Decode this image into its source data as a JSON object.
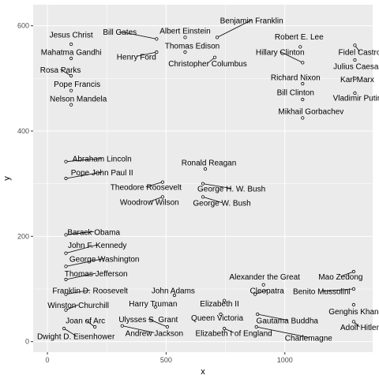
{
  "chart_data": {
    "type": "scatter",
    "xlabel": "x",
    "ylabel": "y",
    "xlim": [
      -60,
      1370
    ],
    "ylim": [
      -20,
      640
    ],
    "x_ticks": [
      0,
      500,
      1000
    ],
    "y_ticks": [
      0,
      200,
      400,
      600
    ],
    "grid": true,
    "colors": {
      "panel": "#ebebeb",
      "grid_major": "#ffffff",
      "point_fill": "#ffffff",
      "point_stroke": "#000000",
      "segment": "#000000",
      "text": "#000000"
    },
    "points": [
      {
        "label": "Benjamin Franklin",
        "x": 715,
        "y": 578,
        "lx": 860,
        "ly": 605
      },
      {
        "label": "Bill Gates",
        "x": 460,
        "y": 575,
        "lx": 305,
        "ly": 583
      },
      {
        "label": "Albert Einstein",
        "x": 580,
        "y": 578,
        "lx": 580,
        "ly": 585
      },
      {
        "label": "Jesus Christ",
        "x": 100,
        "y": 565,
        "lx": 100,
        "ly": 578
      },
      {
        "label": "Robert E. Lee",
        "x": 1065,
        "y": 560,
        "lx": 1060,
        "ly": 574
      },
      {
        "label": "Fidel Castro",
        "x": 1295,
        "y": 563,
        "lx": 1315,
        "ly": 545
      },
      {
        "label": "Thomas Edison",
        "x": 580,
        "y": 550,
        "lx": 610,
        "ly": 557
      },
      {
        "label": "Mahatma Gandhi",
        "x": 100,
        "y": 538,
        "lx": 100,
        "ly": 545
      },
      {
        "label": "Henry Ford",
        "x": 460,
        "y": 550,
        "lx": 375,
        "ly": 536
      },
      {
        "label": "Hillary Clinton",
        "x": 1075,
        "y": 530,
        "lx": 980,
        "ly": 545
      },
      {
        "label": "Julius Caesar",
        "x": 1295,
        "y": 535,
        "lx": 1305,
        "ly": 518
      },
      {
        "label": "Christopher Columbus",
        "x": 705,
        "y": 540,
        "lx": 675,
        "ly": 523
      },
      {
        "label": "Rosa Parks",
        "x": 100,
        "y": 505,
        "lx": 55,
        "ly": 511
      },
      {
        "label": "Pope Francis",
        "x": 100,
        "y": 477,
        "lx": 125,
        "ly": 484
      },
      {
        "label": "Richard Nixon",
        "x": 1075,
        "y": 490,
        "lx": 1045,
        "ly": 497
      },
      {
        "label": "Karl Marx",
        "x": 1295,
        "y": 500,
        "lx": 1305,
        "ly": 493
      },
      {
        "label": "Bill Clinton",
        "x": 1075,
        "y": 460,
        "lx": 1045,
        "ly": 468
      },
      {
        "label": "Vladimir Putin",
        "x": 1295,
        "y": 472,
        "lx": 1305,
        "ly": 458
      },
      {
        "label": "Nelson Mandela",
        "x": 100,
        "y": 450,
        "lx": 130,
        "ly": 456
      },
      {
        "label": "Mikhail Gorbachev",
        "x": 1075,
        "y": 425,
        "lx": 1110,
        "ly": 432
      },
      {
        "label": "Abraham Lincoln",
        "x": 78,
        "y": 342,
        "lx": 230,
        "ly": 342
      },
      {
        "label": "Ronald Reagan",
        "x": 665,
        "y": 328,
        "lx": 680,
        "ly": 335
      },
      {
        "label": "Pope John Paul II",
        "x": 78,
        "y": 310,
        "lx": 230,
        "ly": 316
      },
      {
        "label": "Theodore Roosevelt",
        "x": 485,
        "y": 303,
        "lx": 415,
        "ly": 288
      },
      {
        "label": "George H. W. Bush",
        "x": 655,
        "y": 300,
        "lx": 775,
        "ly": 285
      },
      {
        "label": "Woodrow Wilson",
        "x": 485,
        "y": 275,
        "lx": 430,
        "ly": 260
      },
      {
        "label": "George W. Bush",
        "x": 655,
        "y": 275,
        "lx": 735,
        "ly": 258
      },
      {
        "label": "Barack Obama",
        "x": 78,
        "y": 203,
        "lx": 195,
        "ly": 203
      },
      {
        "label": "John F. Kennedy",
        "x": 78,
        "y": 168,
        "lx": 210,
        "ly": 178
      },
      {
        "label": "George Washington",
        "x": 78,
        "y": 143,
        "lx": 240,
        "ly": 152
      },
      {
        "label": "Mao Zedong",
        "x": 1290,
        "y": 133,
        "lx": 1235,
        "ly": 118
      },
      {
        "label": "Thomas Jefferson",
        "x": 78,
        "y": 118,
        "lx": 205,
        "ly": 124
      },
      {
        "label": "Alexander the Great",
        "x": 910,
        "y": 108,
        "lx": 915,
        "ly": 118
      },
      {
        "label": "Benito Mussolini",
        "x": 1290,
        "y": 100,
        "lx": 1155,
        "ly": 90
      },
      {
        "label": "Franklin D. Roosevelt",
        "x": 78,
        "y": 90,
        "lx": 180,
        "ly": 92
      },
      {
        "label": "John Adams",
        "x": 535,
        "y": 88,
        "lx": 530,
        "ly": 92
      },
      {
        "label": "Cleopatra",
        "x": 875,
        "y": 90,
        "lx": 925,
        "ly": 92
      },
      {
        "label": "Harry Truman",
        "x": 455,
        "y": 66,
        "lx": 445,
        "ly": 67
      },
      {
        "label": "Elizabeth II",
        "x": 745,
        "y": 78,
        "lx": 725,
        "ly": 67
      },
      {
        "label": "Genghis Khan",
        "x": 1290,
        "y": 70,
        "lx": 1290,
        "ly": 52
      },
      {
        "label": "Winston Churchill",
        "x": 78,
        "y": 60,
        "lx": 130,
        "ly": 64
      },
      {
        "label": "Queen Victoria",
        "x": 730,
        "y": 52,
        "lx": 715,
        "ly": 40
      },
      {
        "label": "Gautama Buddha",
        "x": 885,
        "y": 52,
        "lx": 1010,
        "ly": 35
      },
      {
        "label": "Joan of Arc",
        "x": 200,
        "y": 28,
        "lx": 160,
        "ly": 35
      },
      {
        "label": "Ulysses S. Grant",
        "x": 505,
        "y": 28,
        "lx": 425,
        "ly": 37
      },
      {
        "label": "Adolf Hitler",
        "x": 1290,
        "y": 38,
        "lx": 1315,
        "ly": 22
      },
      {
        "label": "Elizabeth I of England",
        "x": 745,
        "y": 25,
        "lx": 785,
        "ly": 11
      },
      {
        "label": "Charlemagne",
        "x": 880,
        "y": 28,
        "lx": 1100,
        "ly": 2
      },
      {
        "label": "Andrew Jackson",
        "x": 315,
        "y": 30,
        "lx": 450,
        "ly": 11
      },
      {
        "label": "Dwight D. Eisenhower",
        "x": 70,
        "y": 25,
        "lx": 120,
        "ly": 5
      }
    ]
  }
}
